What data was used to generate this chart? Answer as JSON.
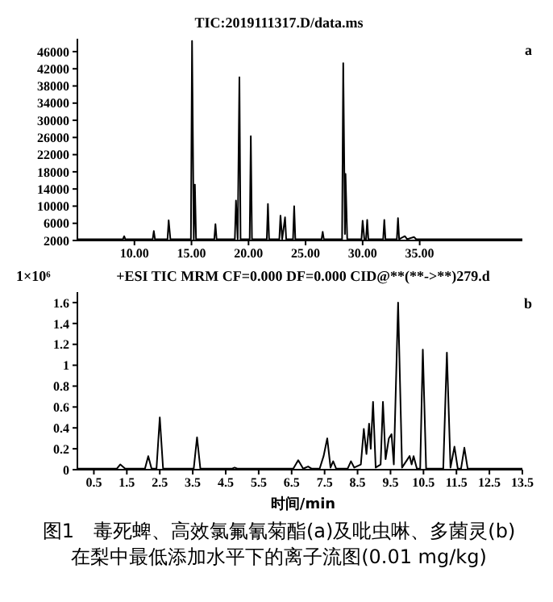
{
  "chart_data": [
    {
      "type": "line",
      "title": "TIC:2019111317.D/data.ms",
      "annotations": [
        "a"
      ],
      "marker": "none",
      "xlim": [
        5,
        44
      ],
      "xticks": [
        {
          "value": 10,
          "label": "10.00"
        },
        {
          "value": 15,
          "label": "15.00"
        },
        {
          "value": 20,
          "label": "20.00"
        },
        {
          "value": 25,
          "label": "25.00"
        },
        {
          "value": 30,
          "label": "30.00"
        },
        {
          "value": 35,
          "label": "35.00"
        }
      ],
      "ylim": [
        2000,
        49000
      ],
      "yticks": [
        2000,
        6000,
        10000,
        14000,
        18000,
        22000,
        26000,
        30000,
        34000,
        38000,
        42000,
        46000
      ],
      "series": [
        {
          "color": "#000000",
          "x": [
            5,
            9.0,
            9.1,
            9.2,
            11.6,
            11.7,
            11.8,
            12.9,
            13.0,
            13.15,
            14.95,
            15.05,
            15.2,
            15.3,
            15.4,
            17.0,
            17.1,
            17.2,
            18.8,
            18.9,
            19.05,
            19.2,
            19.3,
            20.1,
            20.2,
            20.3,
            21.6,
            21.7,
            21.8,
            22.7,
            22.8,
            22.95,
            23.2,
            23.3,
            23.9,
            24.0,
            24.1,
            26.4,
            26.5,
            26.6,
            28.2,
            28.3,
            28.45,
            28.5,
            28.65,
            29.9,
            30.0,
            30.15,
            30.3,
            30.4,
            30.5,
            31.8,
            31.9,
            32.0,
            33.0,
            33.1,
            33.2,
            33.7,
            33.9,
            34.5,
            34.7,
            44
          ],
          "values": [
            2300,
            2300,
            3000,
            2300,
            2300,
            4200,
            2300,
            2300,
            6700,
            2300,
            2300,
            48500,
            2300,
            15000,
            2300,
            2300,
            5800,
            2300,
            2300,
            11300,
            2300,
            40000,
            2300,
            2300,
            26300,
            2300,
            2300,
            10500,
            2300,
            2300,
            7800,
            2300,
            7400,
            2300,
            2300,
            10000,
            2300,
            2300,
            4000,
            2300,
            2300,
            43300,
            3500,
            17500,
            2300,
            2300,
            6600,
            2300,
            2300,
            6800,
            2300,
            2300,
            6800,
            2300,
            2300,
            7200,
            2300,
            3000,
            2300,
            2800,
            2300,
            2300
          ]
        }
      ]
    },
    {
      "type": "line",
      "title": "+ESI TIC MRM CF=0.000 DF=0.000 CID@**(**->**)279.d",
      "ylabel": "1×10⁶",
      "xlabel": "时间/min",
      "annotations": [
        "b",
        "图1　毒死蜱、高效氯氟氰菊酯(a)及吡虫啉、多菌灵(b)在梨中最低添加水平下的离子流图(0.01 mg/kg)"
      ],
      "marker": "none",
      "xlim": [
        0,
        13.5
      ],
      "xticks": [
        0.5,
        1.5,
        2.5,
        3.5,
        4.5,
        5.5,
        6.5,
        7.5,
        8.5,
        9.5,
        10.5,
        11.5,
        12.5,
        13.5
      ],
      "ylim": [
        0,
        1.7
      ],
      "yticks": [
        0,
        0.2,
        0.4,
        0.6,
        0.8,
        1.0,
        1.2,
        1.4,
        1.6
      ],
      "series": [
        {
          "color": "#000000",
          "x": [
            0,
            1.2,
            1.3,
            1.45,
            2.05,
            2.15,
            2.25,
            2.4,
            2.5,
            2.6,
            3.53,
            3.63,
            3.73,
            4.7,
            4.77,
            4.85,
            6.55,
            6.7,
            6.85,
            7.0,
            7.1,
            7.35,
            7.47,
            7.58,
            7.68,
            7.76,
            7.85,
            8.2,
            8.3,
            8.4,
            8.6,
            8.69,
            8.77,
            8.85,
            8.9,
            8.97,
            9.05,
            9.2,
            9.27,
            9.35,
            9.45,
            9.53,
            9.6,
            9.73,
            9.85,
            10.08,
            10.14,
            10.2,
            10.3,
            10.4,
            10.48,
            10.58,
            11.1,
            11.21,
            11.32,
            11.44,
            11.54,
            11.64,
            11.74,
            11.84,
            12.15,
            13.5
          ],
          "values": [
            0.01,
            0.01,
            0.05,
            0.01,
            0.01,
            0.13,
            0.01,
            0.01,
            0.5,
            0.01,
            0.01,
            0.31,
            0.01,
            0.01,
            0.02,
            0.01,
            0.01,
            0.09,
            0.01,
            0.03,
            0.01,
            0.01,
            0.13,
            0.3,
            0.02,
            0.08,
            0.01,
            0.01,
            0.08,
            0.02,
            0.05,
            0.39,
            0.15,
            0.44,
            0.2,
            0.65,
            0.02,
            0.05,
            0.65,
            0.1,
            0.3,
            0.34,
            0.05,
            1.6,
            0.02,
            0.13,
            0.05,
            0.13,
            0.01,
            0.01,
            1.15,
            0.01,
            0.01,
            1.12,
            0.02,
            0.22,
            0.01,
            0.01,
            0.21,
            0.01,
            0.01,
            0.01
          ]
        }
      ]
    }
  ]
}
